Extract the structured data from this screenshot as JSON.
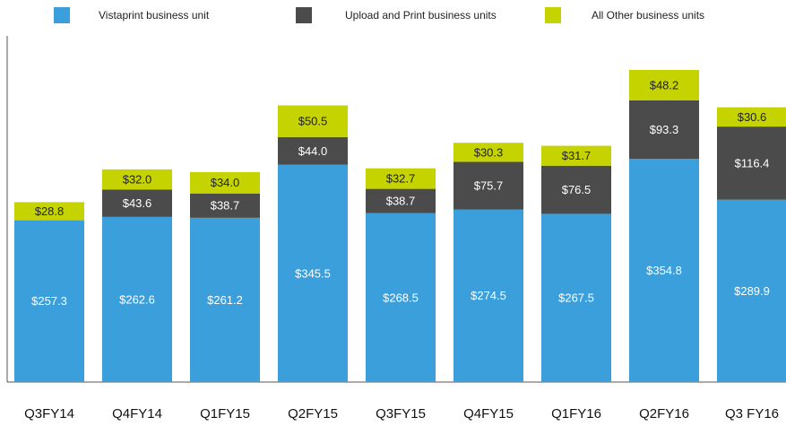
{
  "chart_data": {
    "type": "stacked_bar",
    "categories": [
      "Q3FY14",
      "Q4FY14",
      "Q1FY15",
      "Q2FY15",
      "Q3FY15",
      "Q4FY15",
      "Q1FY16",
      "Q2FY16",
      "Q3 FY16"
    ],
    "series": [
      {
        "name": "Vistaprint business unit",
        "color": "#3a9fdb",
        "values": [
          257.3,
          262.6,
          261.2,
          345.5,
          268.5,
          274.5,
          267.5,
          354.8,
          289.9
        ],
        "value_labels": [
          "$257.3",
          "$262.6",
          "$261.2",
          "$345.5",
          "$268.5",
          "$274.5",
          "$267.5",
          "$354.8",
          "$289.9"
        ]
      },
      {
        "name": "Upload and Print business units",
        "color": "#4b4b4b",
        "values": [
          null,
          43.6,
          38.7,
          44.0,
          38.7,
          75.7,
          76.5,
          93.3,
          116.4
        ],
        "value_labels": [
          null,
          "$43.6",
          "$38.7",
          "$44.0",
          "$38.7",
          "$75.7",
          "$76.5",
          "$93.3",
          "$116.4"
        ]
      },
      {
        "name": "All Other business units",
        "color": "#c5d400",
        "values": [
          28.8,
          32.0,
          34.0,
          50.5,
          32.7,
          30.3,
          31.7,
          48.2,
          30.6
        ],
        "value_labels": [
          "$28.8",
          "$32.0",
          "$34.0",
          "$50.5",
          "$32.7",
          "$30.3",
          "$31.7",
          "$48.2",
          "$30.6"
        ]
      }
    ],
    "legend": "top"
  }
}
